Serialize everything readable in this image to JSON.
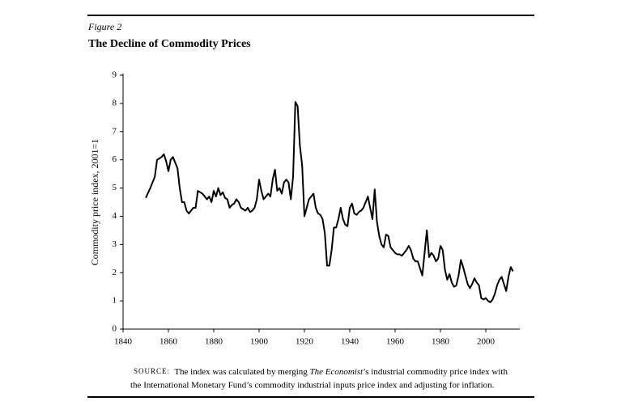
{
  "chart_data": {
    "type": "line",
    "figure_label": "Figure 2",
    "title": "The Decline of Commodity Prices",
    "y_label": "Commodity price index, 2001=1",
    "source": {
      "label": "SOURCE:",
      "lines": [
        [
          "The index was calculated by merging ",
          "The Economist",
          "’s industrial commodity price index with"
        ],
        [
          "the International Monetary Fund’s commodity industrial inputs price index and adjusting for inflation."
        ]
      ]
    },
    "color": "#000000",
    "xlim": [
      1840,
      2015
    ],
    "xticks": [
      1840,
      1860,
      1880,
      1900,
      1920,
      1940,
      1960,
      1980,
      2000
    ],
    "ylim": [
      0,
      9
    ],
    "yticks": [
      0,
      1,
      2,
      3,
      4,
      5,
      6,
      7,
      8,
      9
    ],
    "x": [
      1850,
      1852,
      1854,
      1855,
      1857,
      1858,
      1859,
      1860,
      1861,
      1862,
      1863,
      1864,
      1865,
      1866,
      1867,
      1868,
      1869,
      1870,
      1871,
      1872,
      1873,
      1874,
      1875,
      1876,
      1877,
      1878,
      1879,
      1880,
      1881,
      1882,
      1883,
      1884,
      1885,
      1886,
      1887,
      1888,
      1889,
      1890,
      1891,
      1892,
      1893,
      1894,
      1895,
      1896,
      1897,
      1898,
      1899,
      1900,
      1901,
      1902,
      1903,
      1904,
      1905,
      1906,
      1907,
      1908,
      1909,
      1910,
      1911,
      1912,
      1913,
      1914,
      1915,
      1916,
      1917,
      1918,
      1919,
      1920,
      1921,
      1922,
      1923,
      1924,
      1925,
      1926,
      1927,
      1928,
      1929,
      1930,
      1931,
      1932,
      1933,
      1934,
      1935,
      1936,
      1937,
      1938,
      1939,
      1940,
      1941,
      1942,
      1943,
      1944,
      1945,
      1946,
      1947,
      1948,
      1949,
      1950,
      1951,
      1952,
      1953,
      1954,
      1955,
      1956,
      1957,
      1958,
      1959,
      1960,
      1961,
      1962,
      1963,
      1964,
      1965,
      1966,
      1967,
      1968,
      1969,
      1970,
      1971,
      1972,
      1973,
      1974,
      1975,
      1976,
      1977,
      1978,
      1979,
      1980,
      1981,
      1982,
      1983,
      1984,
      1985,
      1986,
      1987,
      1988,
      1989,
      1990,
      1991,
      1992,
      1993,
      1994,
      1995,
      1996,
      1997,
      1998,
      1999,
      2000,
      2001,
      2002,
      2003,
      2004,
      2005,
      2006,
      2007,
      2008,
      2009,
      2010,
      2011,
      2012
    ],
    "values": [
      4.65,
      5.0,
      5.4,
      6.0,
      6.1,
      6.2,
      5.95,
      5.6,
      6.0,
      6.1,
      5.9,
      5.7,
      5.0,
      4.5,
      4.5,
      4.2,
      4.1,
      4.2,
      4.3,
      4.3,
      4.9,
      4.85,
      4.8,
      4.7,
      4.6,
      4.7,
      4.5,
      4.9,
      4.7,
      5.0,
      4.75,
      4.85,
      4.65,
      4.6,
      4.3,
      4.4,
      4.45,
      4.6,
      4.5,
      4.3,
      4.25,
      4.2,
      4.3,
      4.15,
      4.2,
      4.3,
      4.6,
      5.3,
      4.9,
      4.6,
      4.7,
      4.8,
      4.7,
      5.3,
      5.65,
      4.9,
      5.0,
      4.8,
      5.2,
      5.3,
      5.2,
      4.6,
      5.4,
      8.05,
      7.9,
      6.5,
      5.8,
      4.0,
      4.3,
      4.6,
      4.7,
      4.8,
      4.3,
      4.1,
      4.05,
      3.9,
      3.4,
      2.25,
      2.25,
      2.8,
      3.6,
      3.6,
      3.9,
      4.3,
      3.9,
      3.7,
      3.65,
      4.3,
      4.45,
      4.1,
      4.05,
      4.15,
      4.2,
      4.3,
      4.5,
      4.7,
      4.3,
      3.9,
      4.95,
      3.8,
      3.3,
      3.0,
      2.9,
      3.35,
      3.3,
      2.9,
      2.8,
      2.7,
      2.65,
      2.65,
      2.6,
      2.7,
      2.8,
      2.95,
      2.8,
      2.5,
      2.4,
      2.4,
      2.15,
      1.9,
      2.7,
      3.5,
      2.55,
      2.7,
      2.6,
      2.4,
      2.5,
      2.95,
      2.8,
      2.1,
      1.75,
      1.95,
      1.65,
      1.5,
      1.55,
      1.9,
      2.45,
      2.2,
      1.9,
      1.6,
      1.45,
      1.6,
      1.8,
      1.65,
      1.55,
      1.1,
      1.05,
      1.1,
      1.0,
      0.95,
      1.05,
      1.25,
      1.55,
      1.75,
      1.85,
      1.6,
      1.35,
      1.85,
      2.2,
      2.05
    ]
  }
}
